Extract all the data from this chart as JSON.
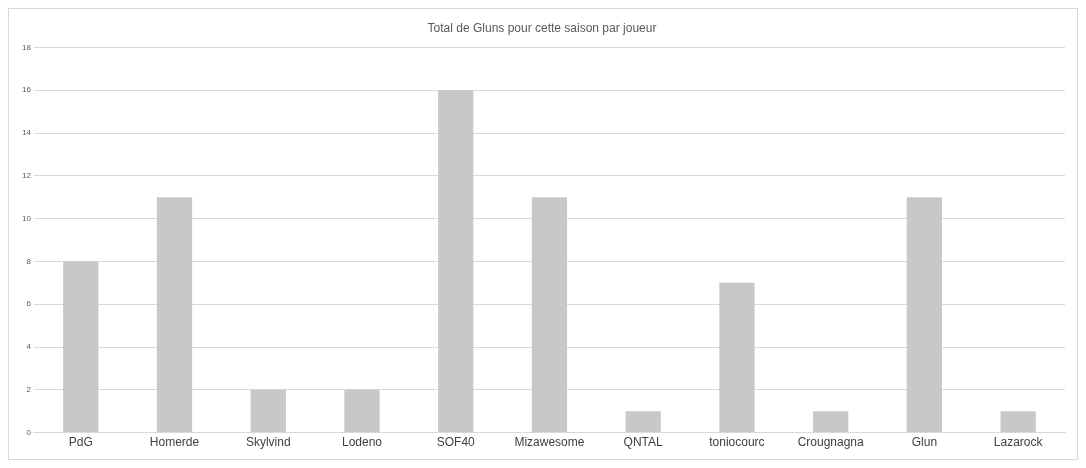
{
  "chart_data": {
    "type": "bar",
    "title": "Total de Gluns pour cette saison par joueur",
    "categories": [
      "PdG",
      "Homerde",
      "Skylvind",
      "Lodeno",
      "SOF40",
      "Mizawesome",
      "QNTAL",
      "toniocourc",
      "Crougnagna",
      "Glun",
      "Lazarock"
    ],
    "values": [
      8,
      11,
      2,
      2,
      16,
      11,
      1,
      7,
      1,
      11,
      1
    ],
    "color": "#c8c8c8",
    "ylim": [
      0,
      18
    ],
    "yticks": [
      0,
      2,
      4,
      6,
      8,
      10,
      12,
      14,
      16,
      18
    ],
    "grid": "y"
  }
}
